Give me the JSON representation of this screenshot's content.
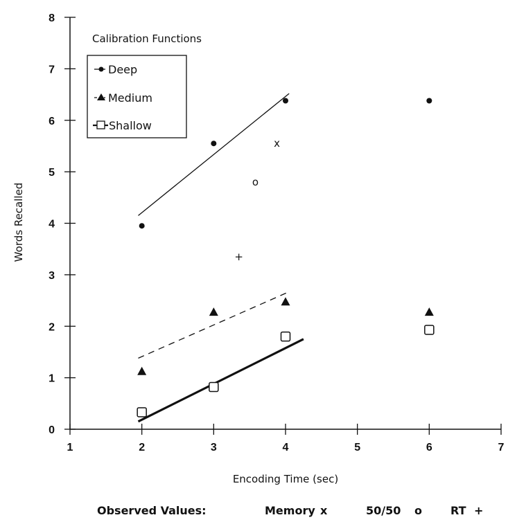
{
  "chart_data": {
    "type": "scatter",
    "title": "",
    "xlabel": "Encoding Time (sec)",
    "ylabel": "Words Recalled",
    "xlim": [
      1,
      7
    ],
    "ylim": [
      0,
      8
    ],
    "xticks": [
      1,
      2,
      3,
      4,
      5,
      6,
      7
    ],
    "yticks": [
      0,
      1,
      2,
      3,
      4,
      5,
      6,
      7,
      8
    ],
    "grid": false,
    "legend": {
      "title": "Calibration Functions",
      "placement": "top-left",
      "entries": [
        "Deep",
        "Medium",
        "Shallow"
      ]
    },
    "series": [
      {
        "name": "Deep",
        "marker": "dot",
        "x": [
          2,
          3,
          4,
          6
        ],
        "y": [
          3.95,
          5.55,
          6.38,
          6.38
        ]
      },
      {
        "name": "Medium",
        "marker": "triangle",
        "x": [
          2,
          3,
          4,
          6
        ],
        "y": [
          1.12,
          2.27,
          2.47,
          2.27
        ]
      },
      {
        "name": "Shallow",
        "marker": "square",
        "x": [
          2,
          3,
          4,
          6
        ],
        "y": [
          0.33,
          0.82,
          1.8,
          1.93
        ]
      }
    ],
    "fit_lines": [
      {
        "series": "Deep",
        "style": "solid",
        "x": [
          1.95,
          4.05
        ],
        "y": [
          4.15,
          6.52
        ]
      },
      {
        "series": "Medium",
        "style": "dashed",
        "x": [
          1.95,
          4.05
        ],
        "y": [
          1.38,
          2.67
        ]
      },
      {
        "series": "Shallow",
        "style": "bold",
        "x": [
          1.95,
          4.25
        ],
        "y": [
          0.15,
          1.75
        ]
      }
    ],
    "observed": {
      "label": "Observed Values:",
      "points": [
        {
          "name": "Memory",
          "symbol": "x",
          "x": 3.88,
          "y": 5.55
        },
        {
          "name": "50/50",
          "symbol": "o",
          "x": 3.58,
          "y": 4.8
        },
        {
          "name": "RT",
          "symbol": "+",
          "x": 3.35,
          "y": 3.35
        }
      ]
    }
  }
}
